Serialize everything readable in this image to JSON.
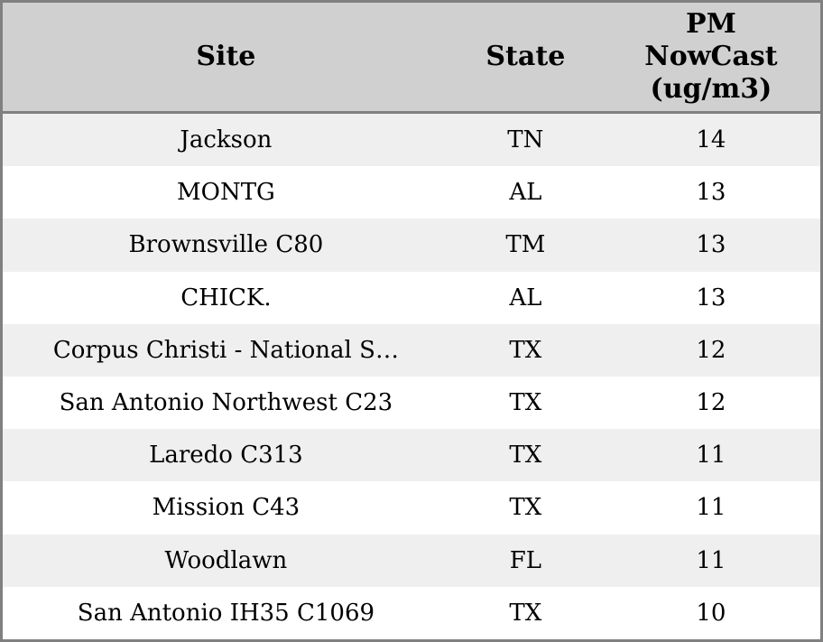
{
  "header": {
    "site": "Site",
    "state": "State",
    "pm": "PM\nNowCast\n(ug/m3)"
  },
  "chart_data": {
    "type": "table",
    "title": "",
    "columns": [
      "Site",
      "State",
      "PM NowCast (ug/m3)"
    ],
    "rows": [
      [
        "Jackson",
        "TN",
        14
      ],
      [
        "MONTG",
        "AL",
        13
      ],
      [
        "Brownsville C80",
        "TM",
        13
      ],
      [
        "CHICK.",
        "AL",
        13
      ],
      [
        "Corpus Christi - National S…",
        "TX",
        12
      ],
      [
        "San Antonio Northwest C23",
        "TX",
        12
      ],
      [
        "Laredo C313",
        "TX",
        11
      ],
      [
        "Mission C43",
        "TX",
        11
      ],
      [
        "Woodlawn",
        "FL",
        11
      ],
      [
        "San Antonio IH35 C1069",
        "TX",
        10
      ]
    ]
  },
  "colors": {
    "header_bg": "#d0d0d0",
    "border": "#808080",
    "row_odd_bg": "#efefef",
    "row_even_bg": "#ffffff",
    "text": "#000000"
  }
}
